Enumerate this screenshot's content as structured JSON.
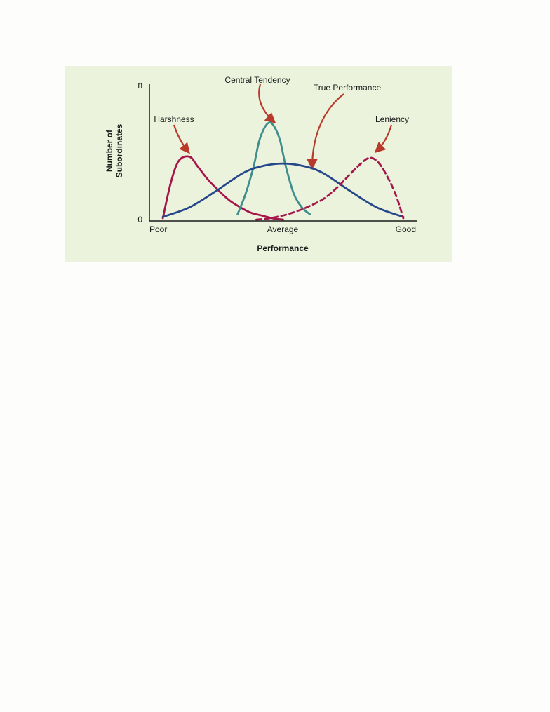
{
  "chart_data": {
    "type": "line",
    "xlabel": "Performance",
    "ylabel_lines": [
      "Number of",
      "Subordinates"
    ],
    "x_ticks": [
      "Poor",
      "Average",
      "Good"
    ],
    "y_ticks": [
      "0",
      "n"
    ],
    "xlim": [
      0,
      1
    ],
    "ylim": [
      0,
      1
    ],
    "grid": false,
    "series": [
      {
        "name": "Harshness",
        "color": "#a5174a",
        "style": "solid",
        "x": [
          0.05,
          0.08,
          0.11,
          0.15,
          0.18,
          0.22,
          0.26,
          0.3,
          0.34,
          0.38,
          0.42,
          0.46,
          0.5
        ],
        "y": [
          0.02,
          0.28,
          0.44,
          0.47,
          0.4,
          0.3,
          0.22,
          0.15,
          0.1,
          0.06,
          0.04,
          0.02,
          0.01
        ]
      },
      {
        "name": "Central Tendency",
        "color": "#3f8e8e",
        "style": "solid",
        "x": [
          0.33,
          0.36,
          0.39,
          0.41,
          0.43,
          0.45,
          0.47,
          0.49,
          0.51,
          0.54,
          0.57,
          0.6
        ],
        "y": [
          0.05,
          0.2,
          0.4,
          0.58,
          0.68,
          0.72,
          0.68,
          0.58,
          0.4,
          0.2,
          0.1,
          0.05
        ]
      },
      {
        "name": "True Performance",
        "color": "#26478a",
        "style": "solid",
        "x": [
          0.05,
          0.15,
          0.25,
          0.35,
          0.42,
          0.5,
          0.58,
          0.65,
          0.75,
          0.85,
          0.95
        ],
        "y": [
          0.03,
          0.1,
          0.22,
          0.35,
          0.4,
          0.42,
          0.4,
          0.35,
          0.22,
          0.1,
          0.03
        ]
      },
      {
        "name": "Leniency",
        "color": "#a5174a",
        "style": "dashed",
        "x": [
          0.4,
          0.45,
          0.5,
          0.55,
          0.6,
          0.65,
          0.7,
          0.74,
          0.78,
          0.82,
          0.85,
          0.88,
          0.92,
          0.95
        ],
        "y": [
          0.01,
          0.02,
          0.04,
          0.07,
          0.11,
          0.16,
          0.24,
          0.32,
          0.4,
          0.46,
          0.44,
          0.36,
          0.2,
          0.02
        ]
      }
    ],
    "annotations": [
      {
        "text": "Central Tendency",
        "target_series": "Central Tendency"
      },
      {
        "text": "True Performance",
        "target_series": "True Performance"
      },
      {
        "text": "Harshness",
        "target_series": "Harshness"
      },
      {
        "text": "Leniency",
        "target_series": "Leniency"
      }
    ],
    "arrow_color": "#b93a2a",
    "background_color": "#ebf3dc",
    "axis_color": "#1a1a1a"
  }
}
